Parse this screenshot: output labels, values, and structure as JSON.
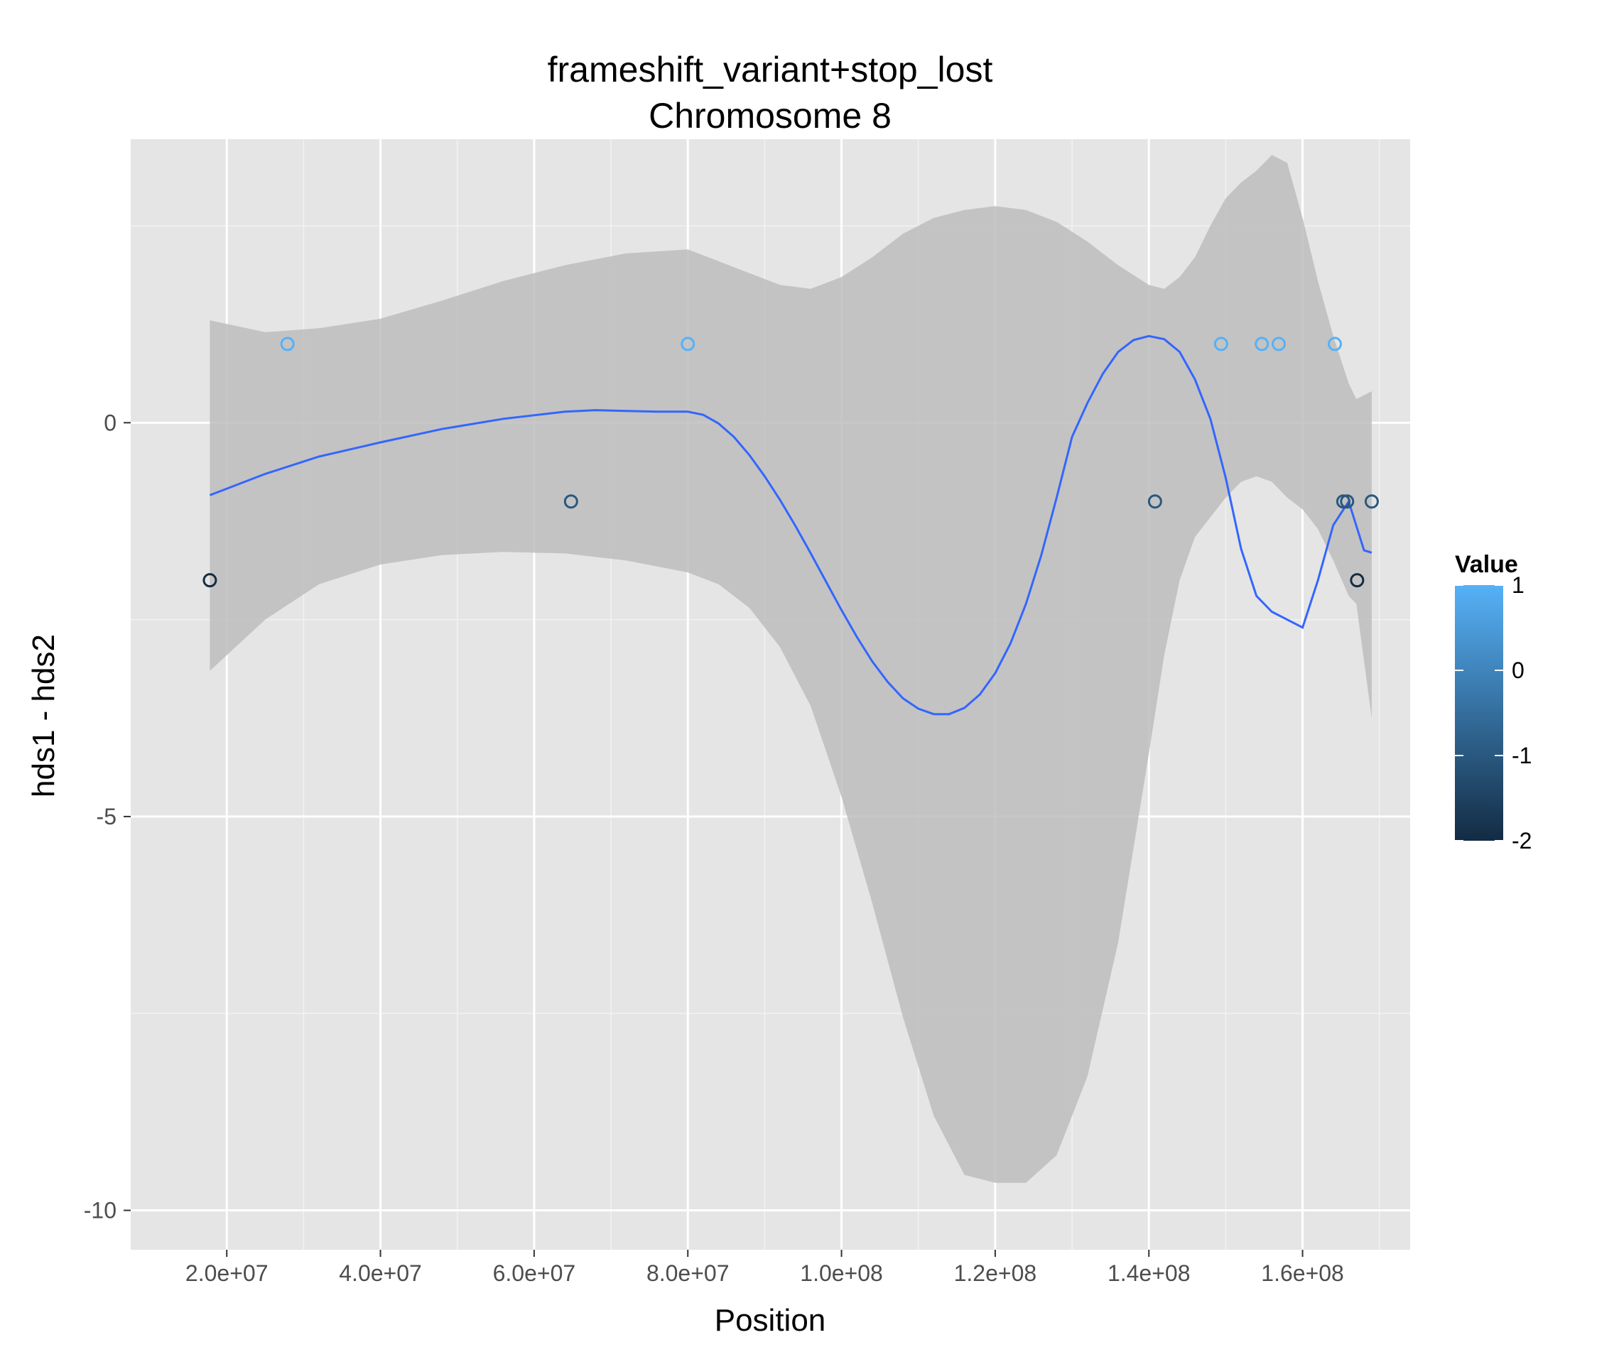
{
  "chart_data": {
    "type": "scatter",
    "title": "frameshift_variant+stop_lost",
    "subtitle": "Chromosome 8",
    "xlabel": "Position",
    "ylabel": "hds1 - hds2",
    "xlim": [
      7500000,
      174000000
    ],
    "ylim": [
      -10.5,
      3.6
    ],
    "x_ticks": [
      20000000,
      40000000,
      60000000,
      80000000,
      100000000,
      120000000,
      140000000,
      160000000
    ],
    "x_tick_labels": [
      "2.0e+07",
      "4.0e+07",
      "6.0e+07",
      "8.0e+07",
      "1.0e+08",
      "1.2e+08",
      "1.4e+08",
      "1.6e+08"
    ],
    "x_minor_ticks": [
      30000000,
      50000000,
      70000000,
      90000000,
      110000000,
      130000000,
      150000000,
      170000000
    ],
    "y_ticks": [
      0,
      -5,
      -10
    ],
    "y_tick_labels": [
      "0",
      "-5",
      "-10"
    ],
    "y_minor_ticks": [
      2.5,
      -2.5,
      -7.5
    ],
    "grid": true,
    "points": [
      {
        "x": 17800000,
        "y": -2
      },
      {
        "x": 27900000,
        "y": 1
      },
      {
        "x": 64800000,
        "y": -1
      },
      {
        "x": 80000000,
        "y": 1
      },
      {
        "x": 140800000,
        "y": -1
      },
      {
        "x": 149400000,
        "y": 1
      },
      {
        "x": 154700000,
        "y": 1
      },
      {
        "x": 156900000,
        "y": 1
      },
      {
        "x": 164200000,
        "y": 1
      },
      {
        "x": 165300000,
        "y": -1
      },
      {
        "x": 165800000,
        "y": -1
      },
      {
        "x": 167100000,
        "y": -2
      },
      {
        "x": 169000000,
        "y": -1
      }
    ],
    "smooth_line": {
      "color": "#3366ff",
      "x": [
        17800000,
        25000000,
        32000000,
        40000000,
        48000000,
        56000000,
        64000000,
        68000000,
        72000000,
        76000000,
        80000000,
        82000000,
        84000000,
        86000000,
        88000000,
        90000000,
        92000000,
        94000000,
        96000000,
        98000000,
        100000000,
        102000000,
        104000000,
        106000000,
        108000000,
        110000000,
        112000000,
        114000000,
        116000000,
        118000000,
        120000000,
        122000000,
        124000000,
        126000000,
        128000000,
        130000000,
        132000000,
        134000000,
        136000000,
        138000000,
        140000000,
        142000000,
        144000000,
        146000000,
        148000000,
        150000000,
        152000000,
        154000000,
        156000000,
        158000000,
        160000000,
        162000000,
        164000000,
        166000000,
        168000000,
        169000000
      ],
      "y": [
        -0.92,
        -0.65,
        -0.43,
        -0.25,
        -0.08,
        0.05,
        0.14,
        0.16,
        0.15,
        0.14,
        0.14,
        0.1,
        -0.01,
        -0.18,
        -0.41,
        -0.68,
        -0.98,
        -1.31,
        -1.66,
        -2.02,
        -2.38,
        -2.72,
        -3.03,
        -3.29,
        -3.5,
        -3.63,
        -3.7,
        -3.7,
        -3.62,
        -3.45,
        -3.18,
        -2.8,
        -2.3,
        -1.68,
        -0.95,
        -0.18,
        0.25,
        0.62,
        0.9,
        1.05,
        1.1,
        1.06,
        0.9,
        0.55,
        0.05,
        -0.7,
        -1.6,
        -2.2,
        -2.4,
        -2.5,
        -2.6,
        -2.0,
        -1.3,
        -1.0,
        -1.62,
        -1.65
      ],
      "y_true": []
    },
    "confidence_band": {
      "color": "#bdbdbd",
      "x": [
        17800000,
        25000000,
        32000000,
        40000000,
        48000000,
        56000000,
        64000000,
        72000000,
        80000000,
        84000000,
        88000000,
        92000000,
        96000000,
        100000000,
        104000000,
        108000000,
        112000000,
        116000000,
        120000000,
        124000000,
        128000000,
        132000000,
        136000000,
        140000000,
        142000000,
        144000000,
        146000000,
        148000000,
        150000000,
        152000000,
        154000000,
        156000000,
        158000000,
        160000000,
        162000000,
        164000000,
        166000000,
        167000000,
        169000000
      ],
      "upper": [
        1.3,
        1.15,
        1.2,
        1.32,
        1.55,
        1.8,
        2.0,
        2.15,
        2.2,
        2.05,
        1.9,
        1.75,
        1.7,
        1.85,
        2.1,
        2.4,
        2.6,
        2.7,
        2.75,
        2.7,
        2.55,
        2.3,
        2.0,
        1.75,
        1.7,
        1.85,
        2.1,
        2.5,
        2.85,
        3.05,
        3.2,
        3.4,
        3.3,
        2.6,
        1.8,
        1.1,
        0.5,
        0.3,
        0.4
      ],
      "lower": [
        -3.15,
        -2.5,
        -2.05,
        -1.8,
        -1.68,
        -1.64,
        -1.66,
        -1.75,
        -1.9,
        -2.05,
        -2.35,
        -2.85,
        -3.6,
        -4.75,
        -6.1,
        -7.55,
        -8.8,
        -9.55,
        -9.65,
        -9.65,
        -9.3,
        -8.3,
        -6.6,
        -4.2,
        -2.95,
        -2.0,
        -1.45,
        -1.2,
        -0.95,
        -0.75,
        -0.68,
        -0.75,
        -0.95,
        -1.1,
        -1.35,
        -1.75,
        -2.2,
        -2.3,
        -3.75
      ]
    },
    "legend": {
      "title": "Value",
      "type": "colorbar",
      "placement": "right",
      "range": [
        -2,
        1
      ],
      "breaks": [
        1,
        0,
        -1,
        -2
      ],
      "break_labels": [
        "1",
        "0",
        "-1",
        "-2"
      ],
      "low_color": "#132b43",
      "high_color": "#56b1f7"
    },
    "panel_background": "#e5e5e5",
    "grid_color": "#ffffff"
  }
}
